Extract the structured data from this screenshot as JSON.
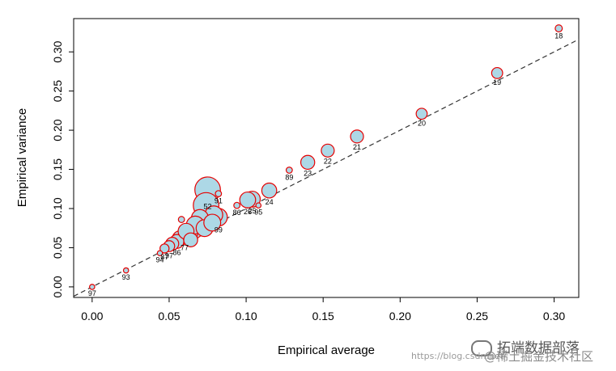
{
  "chart_data": {
    "type": "scatter",
    "title": "",
    "xlabel": "Empirical average",
    "ylabel": "Empirical variance",
    "xlim": [
      -0.012,
      0.316
    ],
    "ylim": [
      -0.0135,
      0.3425
    ],
    "x_ticks": [
      0.0,
      0.05,
      0.1,
      0.15,
      0.2,
      0.25,
      0.3
    ],
    "x_tick_labels": [
      "0.00",
      "0.05",
      "0.10",
      "0.15",
      "0.20",
      "0.25",
      "0.30"
    ],
    "y_ticks": [
      0.0,
      0.05,
      0.1,
      0.15,
      0.2,
      0.25,
      0.3
    ],
    "y_tick_labels": [
      "0.00",
      "0.05",
      "0.10",
      "0.15",
      "0.20",
      "0.25",
      "0.30"
    ],
    "reference_line": {
      "style": "dashed",
      "slope": 1.0,
      "intercept": 0.0,
      "color": "#333333"
    },
    "marker_fill": "#add8e6",
    "marker_edge": "#e60000",
    "points": [
      {
        "x": 0.303,
        "y": 0.33,
        "size": 0.4,
        "label": "18"
      },
      {
        "x": 0.263,
        "y": 0.273,
        "size": 0.8,
        "label": "19"
      },
      {
        "x": 0.214,
        "y": 0.221,
        "size": 0.8,
        "label": "20"
      },
      {
        "x": 0.172,
        "y": 0.192,
        "size": 1.0,
        "label": "21"
      },
      {
        "x": 0.153,
        "y": 0.174,
        "size": 1.0,
        "label": "22"
      },
      {
        "x": 0.14,
        "y": 0.159,
        "size": 1.1,
        "label": "23"
      },
      {
        "x": 0.128,
        "y": 0.149,
        "size": 0.3,
        "label": "89"
      },
      {
        "x": 0.115,
        "y": 0.123,
        "size": 1.2,
        "label": "24"
      },
      {
        "x": 0.104,
        "y": 0.112,
        "size": 1.3,
        "label": "25"
      },
      {
        "x": 0.101,
        "y": 0.111,
        "size": 1.3,
        "label": "26"
      },
      {
        "x": 0.094,
        "y": 0.104,
        "size": 0.3,
        "label": "86"
      },
      {
        "x": 0.108,
        "y": 0.104,
        "size": 0.2,
        "label": "95"
      },
      {
        "x": 0.075,
        "y": 0.124,
        "size": 2.3,
        "label": "52"
      },
      {
        "x": 0.082,
        "y": 0.119,
        "size": 0.3,
        "label": "91"
      },
      {
        "x": 0.074,
        "y": 0.104,
        "size": 2.3,
        "label": ""
      },
      {
        "x": 0.082,
        "y": 0.089,
        "size": 1.5,
        "label": "99"
      },
      {
        "x": 0.076,
        "y": 0.085,
        "size": 1.6,
        "label": ""
      },
      {
        "x": 0.072,
        "y": 0.08,
        "size": 1.5,
        "label": ""
      },
      {
        "x": 0.069,
        "y": 0.076,
        "size": 1.5,
        "label": ""
      },
      {
        "x": 0.066,
        "y": 0.072,
        "size": 1.4,
        "label": ""
      },
      {
        "x": 0.063,
        "y": 0.068,
        "size": 1.4,
        "label": ""
      },
      {
        "x": 0.06,
        "y": 0.065,
        "size": 1.3,
        "label": "77"
      },
      {
        "x": 0.057,
        "y": 0.062,
        "size": 1.2,
        "label": ""
      },
      {
        "x": 0.055,
        "y": 0.058,
        "size": 1.1,
        "label": "86"
      },
      {
        "x": 0.052,
        "y": 0.055,
        "size": 1.0,
        "label": ""
      },
      {
        "x": 0.05,
        "y": 0.052,
        "size": 0.8,
        "label": "97"
      },
      {
        "x": 0.047,
        "y": 0.049,
        "size": 0.6,
        "label": "87"
      },
      {
        "x": 0.058,
        "y": 0.086,
        "size": 0.3,
        "label": ""
      },
      {
        "x": 0.079,
        "y": 0.092,
        "size": 1.5,
        "label": ""
      },
      {
        "x": 0.07,
        "y": 0.088,
        "size": 1.4,
        "label": ""
      },
      {
        "x": 0.067,
        "y": 0.079,
        "size": 1.5,
        "label": ""
      },
      {
        "x": 0.073,
        "y": 0.075,
        "size": 1.4,
        "label": ""
      },
      {
        "x": 0.061,
        "y": 0.071,
        "size": 1.3,
        "label": ""
      },
      {
        "x": 0.078,
        "y": 0.082,
        "size": 1.4,
        "label": ""
      },
      {
        "x": 0.064,
        "y": 0.06,
        "size": 1.1,
        "label": ""
      },
      {
        "x": 0.044,
        "y": 0.043,
        "size": 0.2,
        "label": "94"
      },
      {
        "x": 0.022,
        "y": 0.021,
        "size": 0.2,
        "label": "93"
      },
      {
        "x": 0.0,
        "y": 0.0,
        "size": 0.2,
        "label": "97"
      }
    ]
  },
  "watermark": {
    "brand": "拓端数据部落",
    "url": "https://blog.csdn.net/",
    "community": "@稀土掘金技术社区"
  }
}
